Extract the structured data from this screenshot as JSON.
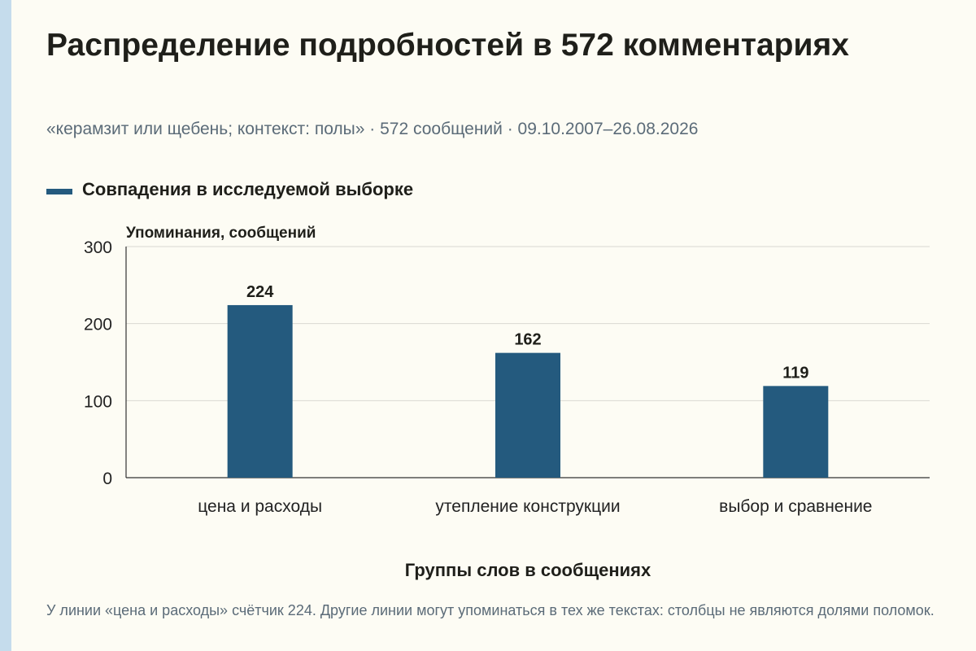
{
  "title": "Распределение подробностей в 572 комментариях",
  "subtitle": "«керамзит или щебень; контекст: полы» · 572 сообщений · 09.10.2007–26.08.2026",
  "footnote": "У линии «цена и расходы» счётчик 224. Другие линии могут упоминаться в тех же текстах: столбцы не являются долями поломок.",
  "colors": {
    "bar": "#245a7e",
    "grid": "#d9d9d2",
    "axis": "#333333"
  },
  "chart_data": {
    "type": "bar",
    "categories": [
      "цена и расходы",
      "утепление конструкции",
      "выбор и сравнение"
    ],
    "series": [
      {
        "name": "Совпадения в исследуемой выборке",
        "values": [
          224,
          162,
          119
        ]
      }
    ],
    "ylabel": "Упоминания, сообщений",
    "xlabel": "Группы слов в сообщениях",
    "ylim": [
      0,
      300
    ],
    "yticks": [
      0,
      100,
      200,
      300
    ],
    "grid": true,
    "legend": "top-left"
  }
}
